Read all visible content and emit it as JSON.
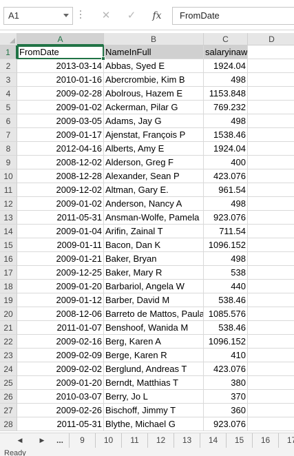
{
  "formula_bar": {
    "name_box": "A1",
    "cancel_icon": "✕",
    "enter_icon": "✓",
    "fx_label": "fx",
    "formula_value": "FromDate"
  },
  "columns": [
    "A",
    "B",
    "C",
    "D"
  ],
  "rows": [
    {
      "n": "1",
      "a": "FromDate",
      "b": "NameInFull",
      "c": "salaryinaweek"
    },
    {
      "n": "2",
      "a": "2013-03-14",
      "b": "Abbas, Syed E",
      "c": "1924.04"
    },
    {
      "n": "3",
      "a": "2010-01-16",
      "b": "Abercrombie, Kim B",
      "c": "498"
    },
    {
      "n": "4",
      "a": "2009-02-28",
      "b": "Abolrous, Hazem E",
      "c": "1153.848"
    },
    {
      "n": "5",
      "a": "2009-01-02",
      "b": "Ackerman, Pilar G",
      "c": "769.232"
    },
    {
      "n": "6",
      "a": "2009-03-05",
      "b": "Adams, Jay G",
      "c": "498"
    },
    {
      "n": "7",
      "a": "2009-01-17",
      "b": "Ajenstat, François P",
      "c": "1538.46"
    },
    {
      "n": "8",
      "a": "2012-04-16",
      "b": "Alberts, Amy E",
      "c": "1924.04"
    },
    {
      "n": "9",
      "a": "2008-12-02",
      "b": "Alderson, Greg F",
      "c": "400"
    },
    {
      "n": "10",
      "a": "2008-12-28",
      "b": "Alexander, Sean P",
      "c": "423.076"
    },
    {
      "n": "11",
      "a": "2009-12-02",
      "b": "Altman, Gary E.",
      "c": "961.54"
    },
    {
      "n": "12",
      "a": "2009-01-02",
      "b": "Anderson, Nancy A",
      "c": "498"
    },
    {
      "n": "13",
      "a": "2011-05-31",
      "b": "Ansman-Wolfe, Pamela",
      "c": "923.076"
    },
    {
      "n": "14",
      "a": "2009-01-04",
      "b": "Arifin, Zainal T",
      "c": "711.54"
    },
    {
      "n": "15",
      "a": "2009-01-11",
      "b": "Bacon, Dan K",
      "c": "1096.152"
    },
    {
      "n": "16",
      "a": "2009-01-21",
      "b": "Baker, Bryan",
      "c": "498"
    },
    {
      "n": "17",
      "a": "2009-12-25",
      "b": "Baker, Mary R",
      "c": "538"
    },
    {
      "n": "18",
      "a": "2009-01-20",
      "b": "Barbariol, Angela W",
      "c": "440"
    },
    {
      "n": "19",
      "a": "2009-01-12",
      "b": "Barber, David M",
      "c": "538.46"
    },
    {
      "n": "20",
      "a": "2008-12-06",
      "b": "Barreto de Mattos, Paula",
      "c": "1085.576"
    },
    {
      "n": "21",
      "a": "2011-01-07",
      "b": "Benshoof, Wanida M",
      "c": "538.46"
    },
    {
      "n": "22",
      "a": "2009-02-16",
      "b": "Berg, Karen A",
      "c": "1096.152"
    },
    {
      "n": "23",
      "a": "2009-02-09",
      "b": "Berge, Karen R",
      "c": "410"
    },
    {
      "n": "24",
      "a": "2009-02-02",
      "b": "Berglund, Andreas T",
      "c": "423.076"
    },
    {
      "n": "25",
      "a": "2009-01-20",
      "b": "Berndt, Matthias T",
      "c": "380"
    },
    {
      "n": "26",
      "a": "2010-03-07",
      "b": "Berry, Jo L",
      "c": "370"
    },
    {
      "n": "27",
      "a": "2009-02-26",
      "b": "Bischoff, Jimmy T",
      "c": "360"
    },
    {
      "n": "28",
      "a": "2011-05-31",
      "b": "Blythe, Michael G",
      "c": "923.076"
    }
  ],
  "sheet_tabs": {
    "prev_icon": "◀",
    "next_icon": "▶",
    "ellipsis": "...",
    "tabs": [
      "9",
      "10",
      "11",
      "12",
      "13",
      "14",
      "15",
      "16",
      "17"
    ]
  },
  "status": {
    "text": "Ready"
  },
  "colors": {
    "accent": "#217346",
    "header_bg": "#e6e6e6",
    "header_row_fill": "#d0d0d0"
  }
}
